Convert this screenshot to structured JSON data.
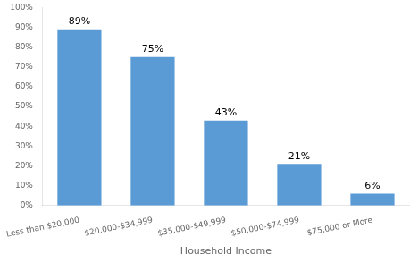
{
  "chart_data": {
    "type": "bar",
    "categories": [
      "Less than $20,000",
      "$20,000-$34,999",
      "$35,000-$49,999",
      "$50,000-$74,999",
      "$75,000 or More"
    ],
    "values": [
      89,
      75,
      43,
      21,
      6
    ],
    "value_labels": [
      "89%",
      "75%",
      "43%",
      "21%",
      "6%"
    ],
    "data_labels": true,
    "color": "#5b9bd5",
    "xlabel": "Household Income",
    "ylim": [
      0,
      100
    ],
    "yticks": [
      {
        "value": 0,
        "label": "0%"
      },
      {
        "value": 10,
        "label": "10%"
      },
      {
        "value": 20,
        "label": "20%"
      },
      {
        "value": 30,
        "label": "30%"
      },
      {
        "value": 40,
        "label": "40%"
      },
      {
        "value": 50,
        "label": "50%"
      },
      {
        "value": 60,
        "label": "60%"
      },
      {
        "value": 70,
        "label": "70%"
      },
      {
        "value": 80,
        "label": "80%"
      },
      {
        "value": 90,
        "label": "90%"
      },
      {
        "value": 100,
        "label": "100%"
      }
    ],
    "grid": false
  }
}
